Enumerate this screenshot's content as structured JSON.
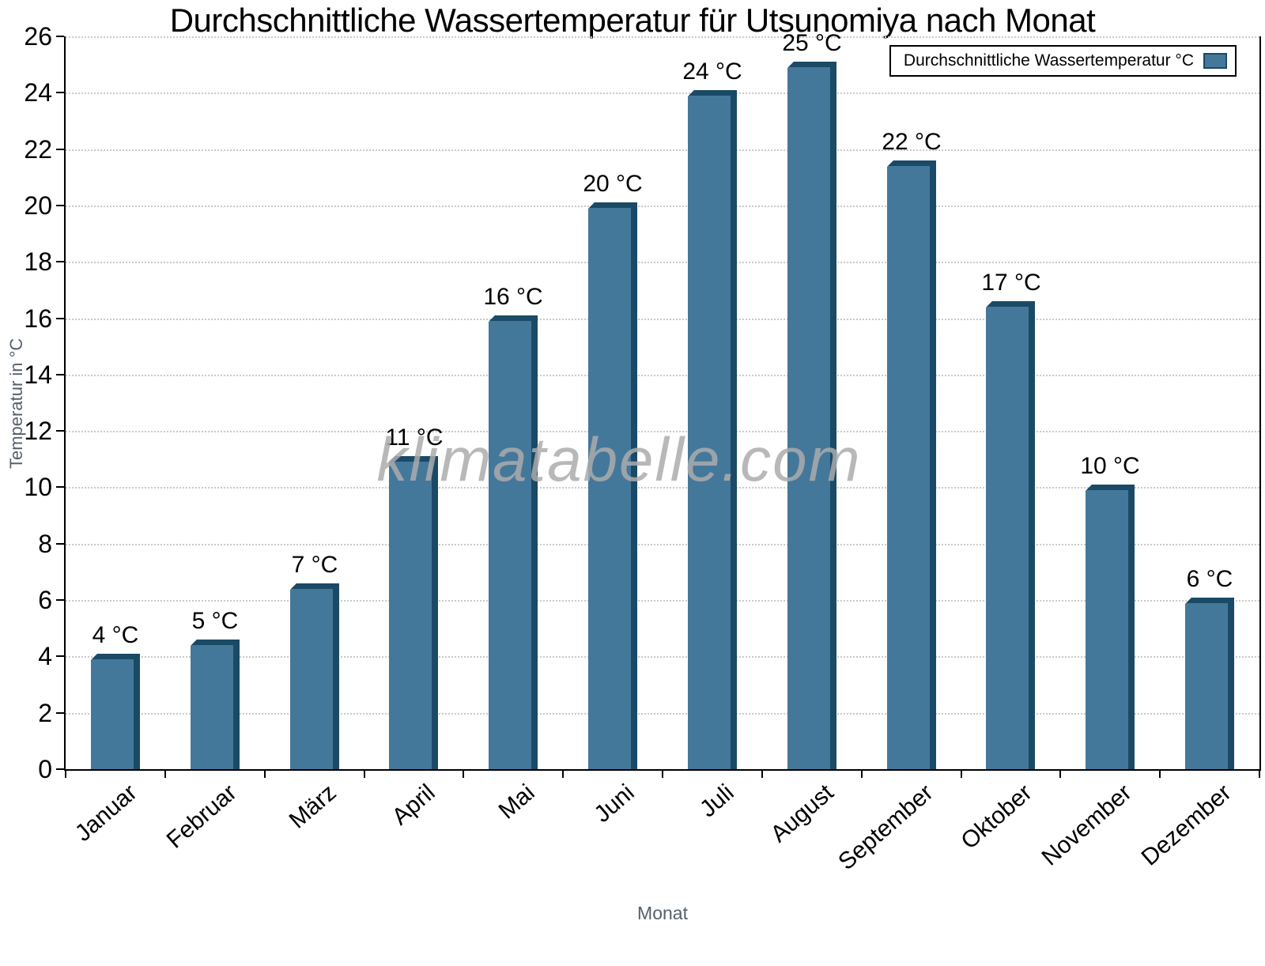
{
  "watermark": "klimatabelle.com",
  "chart_data": {
    "type": "bar",
    "title": "Durchschnittliche Wassertemperatur für Utsunomiya nach Monat",
    "series_name": "Durchschnittliche Wassertemperatur °C",
    "xlabel": "Monat",
    "ylabel": "Temperatur in °C",
    "categories": [
      "Januar",
      "Februar",
      "März",
      "April",
      "Mai",
      "Juni",
      "Juli",
      "August",
      "September",
      "Oktober",
      "November",
      "Dezember"
    ],
    "values": [
      4.1,
      4.6,
      6.6,
      11.1,
      16.1,
      20.1,
      24.1,
      25.1,
      21.6,
      16.6,
      10.1,
      6.1
    ],
    "value_labels": [
      "4 °C",
      "5 °C",
      "7 °C",
      "11 °C",
      "16 °C",
      "20 °C",
      "24 °C",
      "25 °C",
      "22 °C",
      "17 °C",
      "10 °C",
      "6 °C"
    ],
    "ylim": [
      0,
      26
    ],
    "yticks": [
      0,
      2,
      4,
      6,
      8,
      10,
      12,
      14,
      16,
      18,
      20,
      22,
      24,
      26
    ],
    "grid": "horizontal-dotted",
    "legend_position": "top-right",
    "bar_color": "#44789B",
    "bar_edge_color": "#1A4A66",
    "axis_color": "#000000",
    "gridline_color": "#C9C9C9",
    "axis_title_color": "#55606B",
    "watermark_color": "#ACACAC"
  }
}
